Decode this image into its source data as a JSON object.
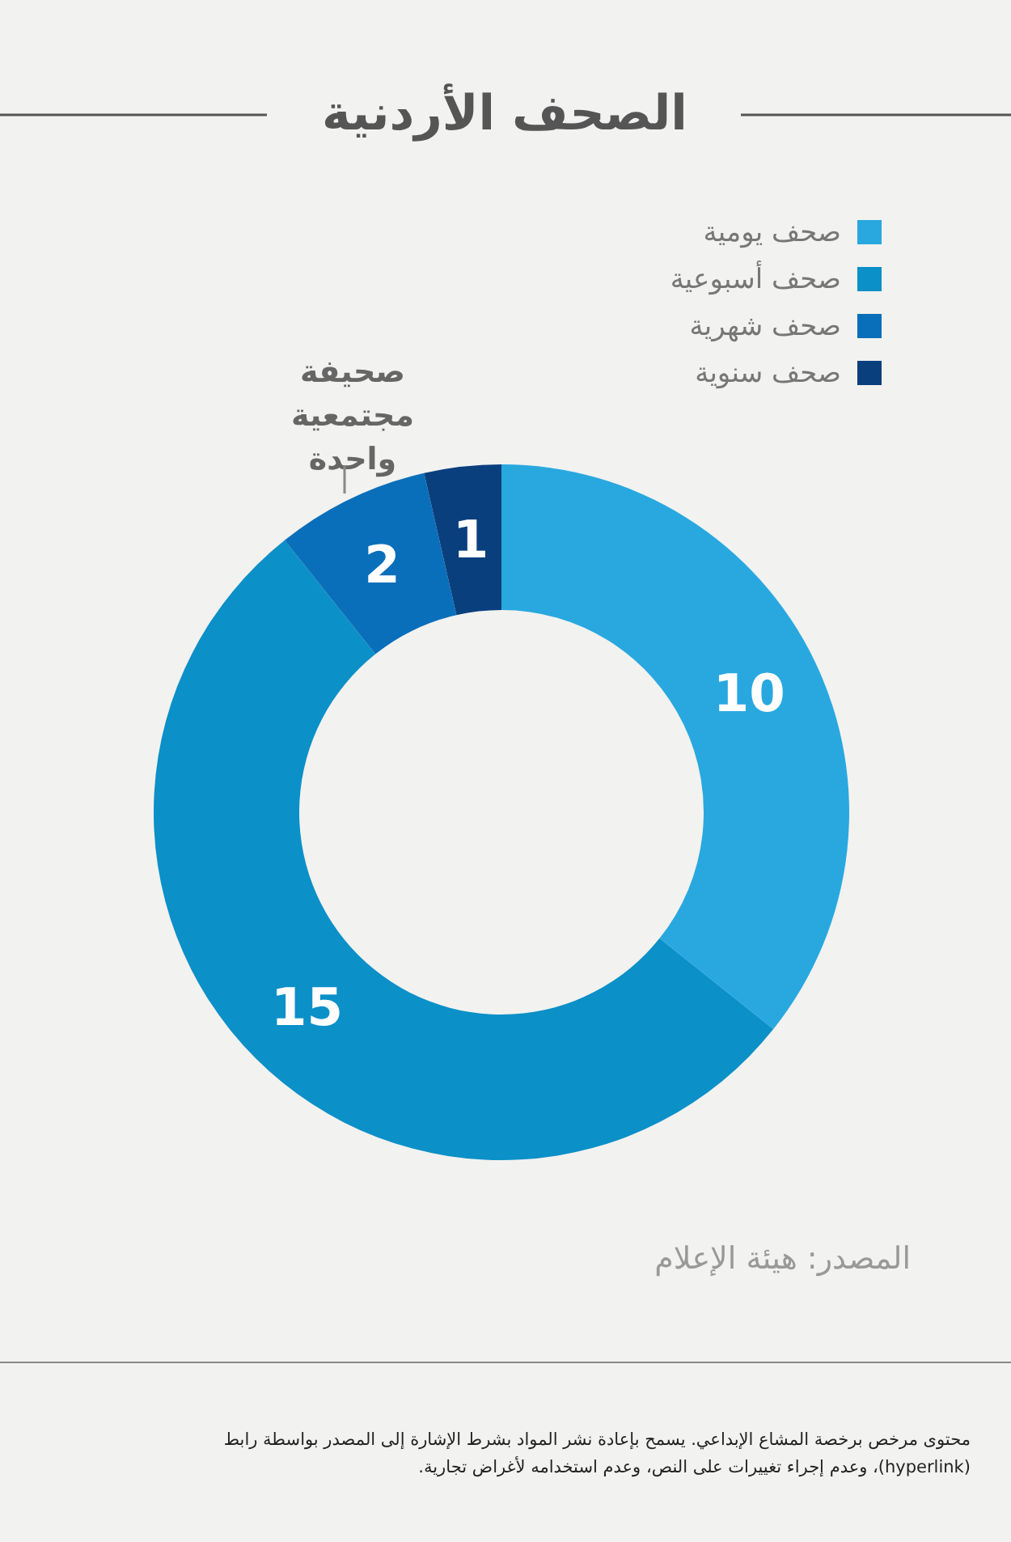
{
  "chart_data": {
    "type": "donut",
    "title": "الصحف الأردنية",
    "categories": [
      "صحف يومية",
      "صحف أسبوعية",
      "صحف شهرية",
      "صحف سنوية"
    ],
    "values": [
      10,
      15,
      2,
      1
    ],
    "colors": [
      "#29a8e0",
      "#0b90c8",
      "#0a6fba",
      "#0a3f7e"
    ],
    "data_labels": true,
    "legend": "top right",
    "annotations": [
      "صحيفة مجتمعية واحدة",
      "المصدر: هيئة الإعلام",
      "محتوى مرخص برخصة المشاع الإبداعي. يسمح بإعادة نشر المواد بشرط الإشارة إلى المصدر بواسطة رابط (hyperlink)، وعدم إجراء تغييرات على النص، وعدم استخدامه لأغراض تجارية."
    ]
  }
}
